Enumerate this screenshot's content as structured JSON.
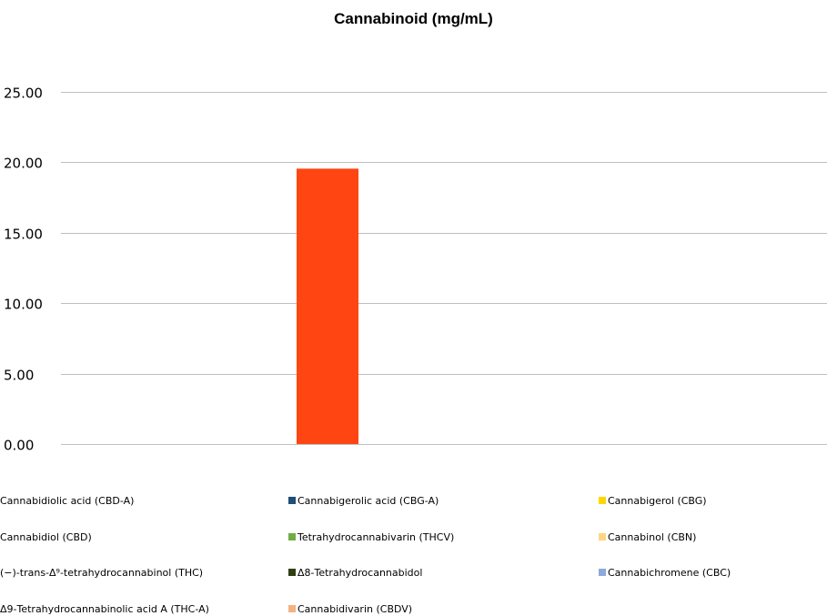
{
  "chart_data": {
    "type": "bar",
    "title": "Cannabinoid (mg/mL)",
    "xlabel": "",
    "ylabel": "",
    "ylim": [
      0,
      25
    ],
    "yticks": [
      "0.00",
      "5.00",
      "10.00",
      "15.00",
      "20.00",
      "25.00"
    ],
    "grid": true,
    "legend_position": "bottom",
    "series": [
      {
        "name": "Cannabidiolic acid (CBD-A)",
        "value": 0,
        "color": "#4472C4"
      },
      {
        "name": "Cannabidiol (CBD)",
        "value": 0,
        "color": "#ED7D31"
      },
      {
        "name": "(−)-trans-Δ⁹-tetrahydrocannabinol (THC)",
        "value": 19.55,
        "color": "#FF4512"
      },
      {
        "name": "Δ9-Tetrahydrocannabinolic acid A (THC-A)",
        "value": 0,
        "color": "#5B9BD5"
      },
      {
        "name": "Cannabigerolic acid (CBG-A)",
        "value": 0,
        "color": "#1F4E79"
      },
      {
        "name": "Tetrahydrocannabivarin (THCV)",
        "value": 0,
        "color": "#70AD47"
      },
      {
        "name": "Δ8-Tetrahydrocannabidol",
        "value": 0,
        "color": "#2F3F12"
      },
      {
        "name": "Cannabidivarin (CBDV)",
        "value": 0,
        "color": "#F4B183"
      },
      {
        "name": "Cannabigerol (CBG)",
        "value": 0,
        "color": "#FFD700"
      },
      {
        "name": "Cannabinol (CBN)",
        "value": 0,
        "color": "#FFD580"
      },
      {
        "name": "Cannabichromene (CBC)",
        "value": 0,
        "color": "#8EA9DB"
      }
    ]
  }
}
